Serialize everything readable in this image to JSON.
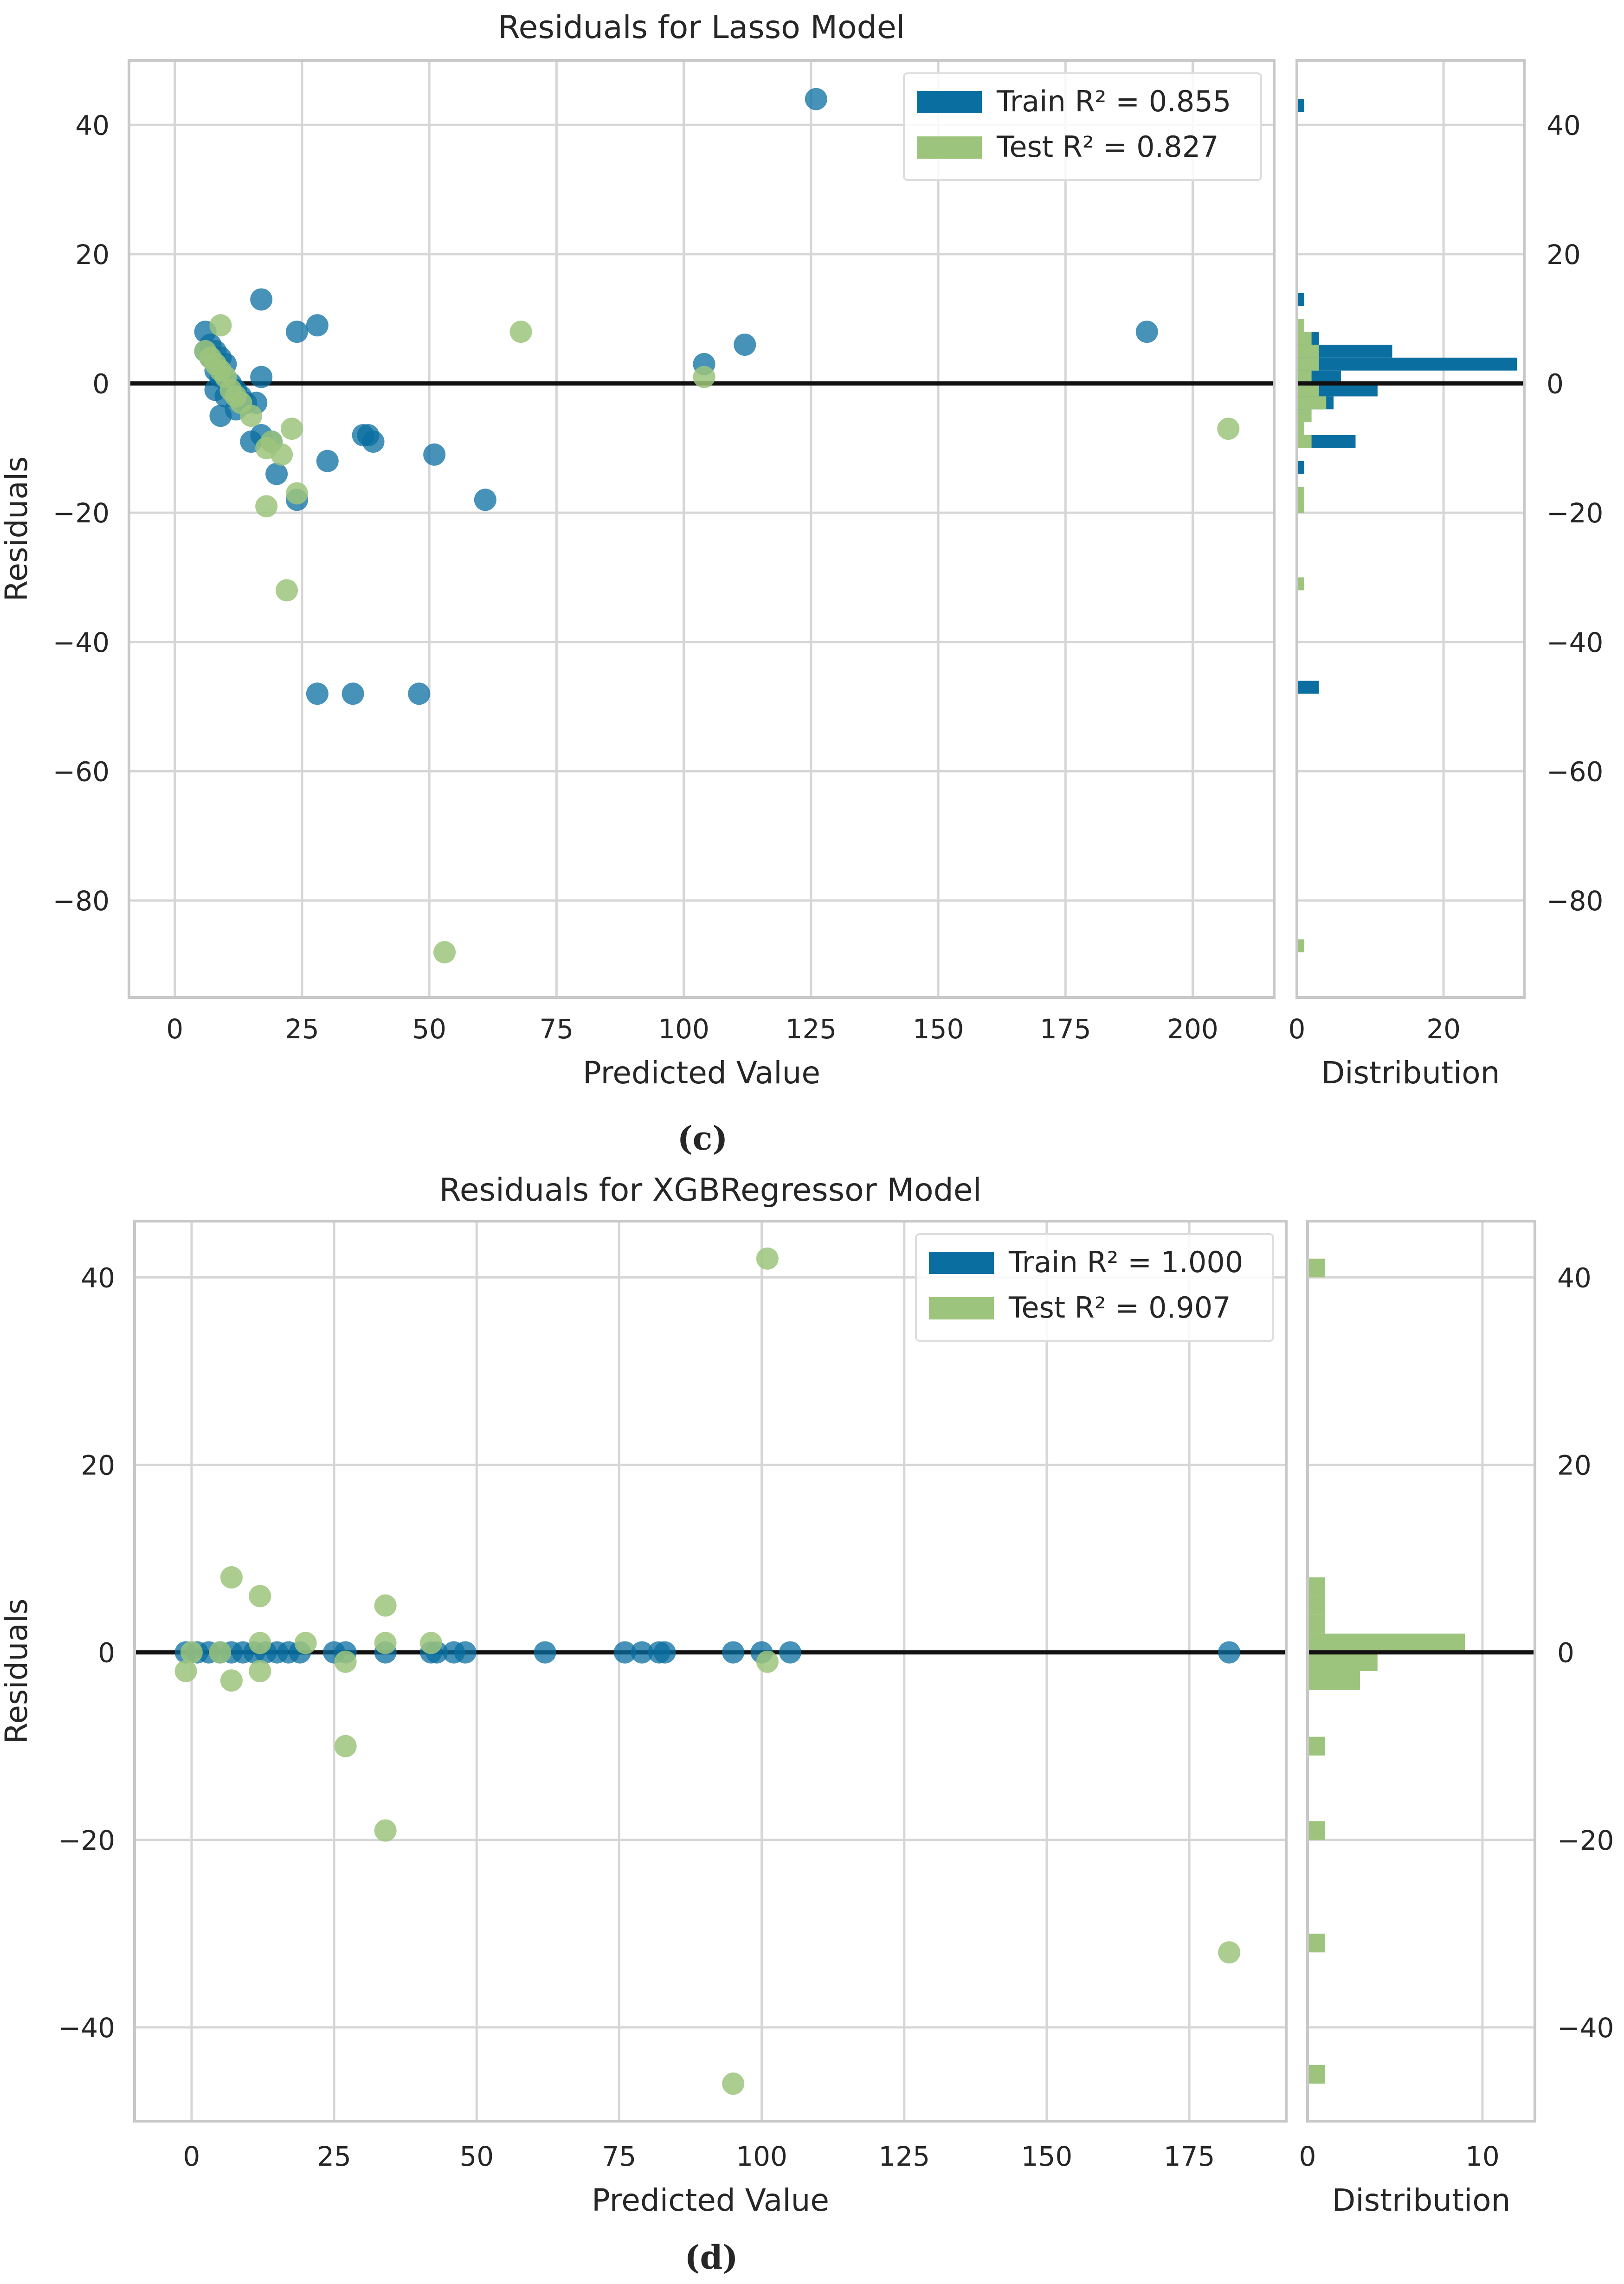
{
  "colors": {
    "train": "#0A6EA0",
    "test": "#9DC47C",
    "grid": "#D6D6D6",
    "frame": "#C8C8C8",
    "zero_line": "#111111",
    "text": "#262626"
  },
  "chart_data": [
    {
      "type": "scatter",
      "panel_label": "(c)",
      "title": "Residuals for Lasso Model",
      "xlabel": "Predicted Value",
      "ylabel": "Residuals",
      "xlim": [
        -9,
        216
      ],
      "ylim": [
        -95,
        50
      ],
      "xticks": [
        0,
        25,
        50,
        75,
        100,
        125,
        150,
        175,
        200
      ],
      "yticks": [
        40,
        20,
        0,
        -20,
        -40,
        -60,
        -80
      ],
      "grid": true,
      "legend_position": "top-right",
      "legend": [
        {
          "name": "Train",
          "text": "Train R² = 0.855",
          "color_key": "train"
        },
        {
          "name": "Test",
          "text": "Test R² = 0.827",
          "color_key": "test"
        }
      ],
      "series": [
        {
          "name": "Train",
          "points": [
            [
              126,
              44
            ],
            [
              17,
              13
            ],
            [
              28,
              9
            ],
            [
              24,
              8
            ],
            [
              191,
              8
            ],
            [
              112,
              6
            ],
            [
              104,
              3
            ],
            [
              6,
              8
            ],
            [
              7,
              6
            ],
            [
              8,
              5
            ],
            [
              9,
              4
            ],
            [
              10,
              3
            ],
            [
              7,
              4
            ],
            [
              6,
              5
            ],
            [
              8,
              2
            ],
            [
              9,
              1
            ],
            [
              11,
              0
            ],
            [
              12,
              -1
            ],
            [
              13,
              -2
            ],
            [
              14,
              -3
            ],
            [
              10,
              -2
            ],
            [
              8,
              -1
            ],
            [
              12,
              -4
            ],
            [
              9,
              -5
            ],
            [
              17,
              1
            ],
            [
              16,
              -3
            ],
            [
              15,
              -9
            ],
            [
              17,
              -8
            ],
            [
              19,
              -9
            ],
            [
              20,
              -14
            ],
            [
              24,
              -18
            ],
            [
              30,
              -12
            ],
            [
              37,
              -8
            ],
            [
              39,
              -9
            ],
            [
              38,
              -8
            ],
            [
              51,
              -11
            ],
            [
              61,
              -18
            ],
            [
              28,
              -48
            ],
            [
              35,
              -48
            ],
            [
              48,
              -48
            ]
          ]
        },
        {
          "name": "Test",
          "points": [
            [
              9,
              9
            ],
            [
              68,
              8
            ],
            [
              104,
              1
            ],
            [
              6,
              5
            ],
            [
              7,
              4
            ],
            [
              8,
              3
            ],
            [
              9,
              2
            ],
            [
              10,
              1
            ],
            [
              11,
              -1
            ],
            [
              12,
              -2
            ],
            [
              13,
              -3
            ],
            [
              15,
              -5
            ],
            [
              18,
              -10
            ],
            [
              19,
              -9
            ],
            [
              21,
              -11
            ],
            [
              23,
              -7
            ],
            [
              24,
              -17
            ],
            [
              18,
              -19
            ],
            [
              22,
              -32
            ],
            [
              53,
              -88
            ],
            [
              207,
              -7
            ]
          ]
        }
      ],
      "distribution": {
        "label": "Distribution",
        "xticks": [
          0,
          20
        ],
        "xlim": [
          0,
          31
        ],
        "bin_width": 2,
        "train_bins": [
          {
            "center": 43,
            "count": 1
          },
          {
            "center": 13,
            "count": 1
          },
          {
            "center": 9,
            "count": 1
          },
          {
            "center": 7,
            "count": 3
          },
          {
            "center": 5,
            "count": 13
          },
          {
            "center": 3,
            "count": 30
          },
          {
            "center": 1,
            "count": 6
          },
          {
            "center": -1,
            "count": 11
          },
          {
            "center": -3,
            "count": 5
          },
          {
            "center": -5,
            "count": 1
          },
          {
            "center": -9,
            "count": 8
          },
          {
            "center": -13,
            "count": 1
          },
          {
            "center": -17,
            "count": 1
          },
          {
            "center": -47,
            "count": 3
          }
        ],
        "test_bins": [
          {
            "center": 9,
            "count": 1
          },
          {
            "center": 7,
            "count": 2
          },
          {
            "center": 5,
            "count": 3
          },
          {
            "center": 3,
            "count": 3
          },
          {
            "center": 1,
            "count": 2
          },
          {
            "center": -1,
            "count": 3
          },
          {
            "center": -3,
            "count": 4
          },
          {
            "center": -5,
            "count": 2
          },
          {
            "center": -7,
            "count": 1
          },
          {
            "center": -9,
            "count": 2
          },
          {
            "center": -17,
            "count": 1
          },
          {
            "center": -19,
            "count": 1
          },
          {
            "center": -31,
            "count": 1
          },
          {
            "center": -87,
            "count": 1
          }
        ]
      }
    },
    {
      "type": "scatter",
      "panel_label": "(d)",
      "title": "Residuals for XGBRegressor Model",
      "xlabel": "Predicted Value",
      "ylabel": "Residuals",
      "xlim": [
        -10,
        192
      ],
      "ylim": [
        -50,
        46
      ],
      "xticks": [
        0,
        25,
        50,
        75,
        100,
        125,
        150,
        175
      ],
      "yticks": [
        40,
        20,
        0,
        -20,
        -40
      ],
      "grid": true,
      "legend_position": "top-right",
      "legend": [
        {
          "name": "Train",
          "text": "Train R² = 1.000",
          "color_key": "train"
        },
        {
          "name": "Test",
          "text": "Test R² = 0.907",
          "color_key": "test"
        }
      ],
      "series": [
        {
          "name": "Train",
          "points": [
            [
              -1,
              0
            ],
            [
              1,
              0
            ],
            [
              3,
              0
            ],
            [
              5,
              0
            ],
            [
              7,
              0
            ],
            [
              9,
              0
            ],
            [
              11,
              0
            ],
            [
              13,
              0
            ],
            [
              15,
              0
            ],
            [
              17,
              0
            ],
            [
              19,
              0
            ],
            [
              25,
              0
            ],
            [
              27,
              0
            ],
            [
              34,
              0
            ],
            [
              42,
              0
            ],
            [
              43,
              0
            ],
            [
              46,
              0
            ],
            [
              48,
              0
            ],
            [
              62,
              0
            ],
            [
              76,
              0
            ],
            [
              79,
              0
            ],
            [
              82,
              0
            ],
            [
              83,
              0
            ],
            [
              95,
              0
            ],
            [
              100,
              0
            ],
            [
              105,
              0
            ],
            [
              182,
              0
            ]
          ]
        },
        {
          "name": "Test",
          "points": [
            [
              101,
              42
            ],
            [
              7,
              8
            ],
            [
              12,
              6
            ],
            [
              34,
              5
            ],
            [
              34,
              1
            ],
            [
              42,
              1
            ],
            [
              12,
              1
            ],
            [
              20,
              1
            ],
            [
              5,
              0
            ],
            [
              0,
              0
            ],
            [
              -1,
              -2
            ],
            [
              7,
              -3
            ],
            [
              12,
              -2
            ],
            [
              27,
              -1
            ],
            [
              101,
              -1
            ],
            [
              27,
              -10
            ],
            [
              34,
              -19
            ],
            [
              182,
              -32
            ],
            [
              95,
              -46
            ]
          ]
        }
      ],
      "distribution": {
        "label": "Distribution",
        "xticks": [
          0,
          10
        ],
        "xlim": [
          0,
          13
        ],
        "bin_width": 2,
        "train_bins": [],
        "test_bins": [
          {
            "center": 41,
            "count": 1
          },
          {
            "center": 7,
            "count": 1
          },
          {
            "center": 5,
            "count": 1
          },
          {
            "center": 3,
            "count": 1
          },
          {
            "center": 1,
            "count": 9
          },
          {
            "center": -1,
            "count": 4
          },
          {
            "center": -3,
            "count": 3
          },
          {
            "center": -10,
            "count": 1
          },
          {
            "center": -19,
            "count": 1
          },
          {
            "center": -31,
            "count": 1
          },
          {
            "center": -45,
            "count": 1
          }
        ]
      }
    }
  ]
}
